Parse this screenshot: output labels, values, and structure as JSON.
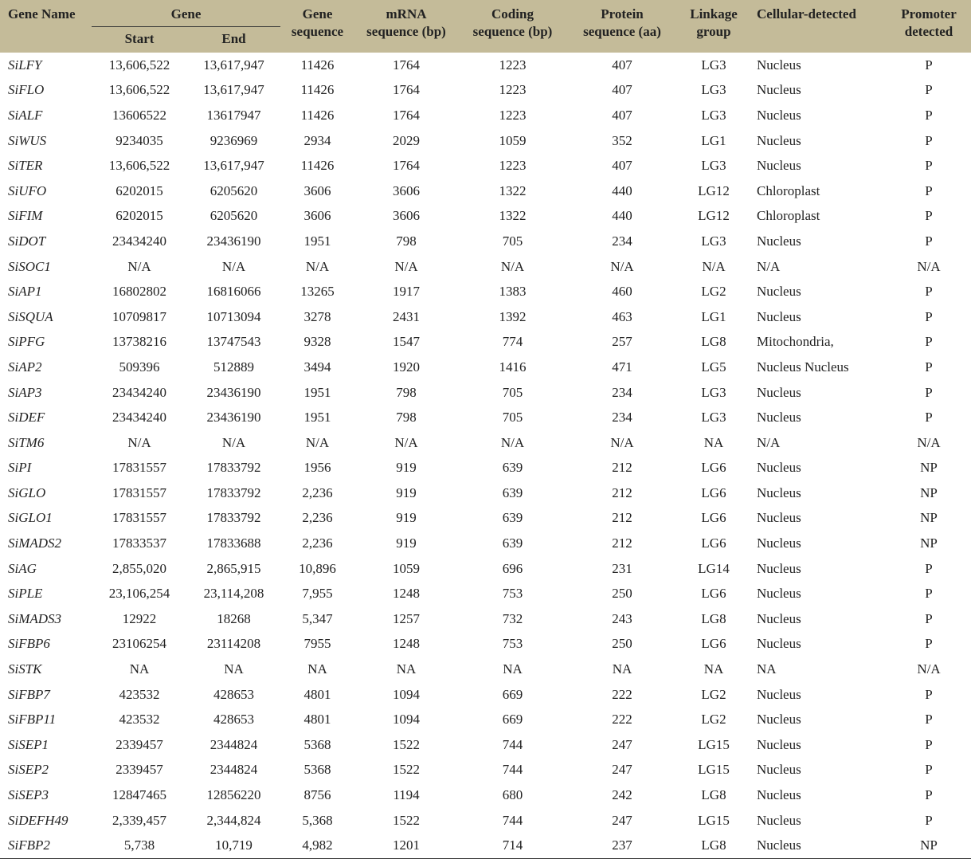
{
  "header": {
    "gene_name": "Gene Name",
    "gene": "Gene",
    "start": "Start",
    "end": "End",
    "gene_sequence": [
      "Gene",
      "sequence"
    ],
    "mrna": [
      "mRNA",
      "sequence (bp)"
    ],
    "coding": [
      "Coding",
      "sequence (bp)"
    ],
    "protein": [
      "Protein",
      "sequence (aa)"
    ],
    "linkage": [
      "Linkage",
      "group"
    ],
    "cellular": "Cellular-detected",
    "promoter": [
      "Promoter",
      "detected"
    ]
  },
  "colors": {
    "header_bg": "#c4bb99"
  },
  "rows": [
    [
      "SiLFY",
      "13,606,522",
      "13,617,947",
      "11426",
      "1764",
      "1223",
      "407",
      "LG3",
      "Nucleus",
      "P"
    ],
    [
      "SiFLO",
      "13,606,522",
      "13,617,947",
      "11426",
      "1764",
      "1223",
      "407",
      "LG3",
      "Nucleus",
      "P"
    ],
    [
      "SiALF",
      "13606522",
      "13617947",
      "11426",
      "1764",
      "1223",
      "407",
      "LG3",
      "Nucleus",
      "P"
    ],
    [
      "SiWUS",
      "9234035",
      "9236969",
      "2934",
      "2029",
      "1059",
      "352",
      "LG1",
      "Nucleus",
      "P"
    ],
    [
      "SiTER",
      "13,606,522",
      "13,617,947",
      "11426",
      "1764",
      "1223",
      "407",
      "LG3",
      "Nucleus",
      "P"
    ],
    [
      "SiUFO",
      "6202015",
      "6205620",
      "3606",
      "3606",
      "1322",
      "440",
      "LG12",
      "Chloroplast",
      "P"
    ],
    [
      "SiFIM",
      "6202015",
      "6205620",
      "3606",
      "3606",
      "1322",
      "440",
      "LG12",
      "Chloroplast",
      "P"
    ],
    [
      "SiDOT",
      "23434240",
      "23436190",
      "1951",
      "798",
      "705",
      "234",
      "LG3",
      "Nucleus",
      "P"
    ],
    [
      "SiSOC1",
      "N/A",
      "N/A",
      "N/A",
      "N/A",
      "N/A",
      "N/A",
      "N/A",
      "N/A",
      "N/A"
    ],
    [
      "SiAP1",
      "16802802",
      "16816066",
      "13265",
      "1917",
      "1383",
      "460",
      "LG2",
      "Nucleus",
      "P"
    ],
    [
      "SiSQUA",
      "10709817",
      "10713094",
      "3278",
      "2431",
      "1392",
      "463",
      "LG1",
      "Nucleus",
      "P"
    ],
    [
      "SiPFG",
      "13738216",
      "13747543",
      "9328",
      "1547",
      "774",
      "257",
      "LG8",
      "Mitochondria,",
      "P"
    ],
    [
      "SiAP2",
      "509396",
      "512889",
      "3494",
      "1920",
      "1416",
      "471",
      "LG5",
      "Nucleus Nucleus",
      "P"
    ],
    [
      "SiAP3",
      "23434240",
      "23436190",
      "1951",
      "798",
      "705",
      "234",
      "LG3",
      "Nucleus",
      "P"
    ],
    [
      "SiDEF",
      "23434240",
      "23436190",
      "1951",
      "798",
      "705",
      "234",
      "LG3",
      "Nucleus",
      "P"
    ],
    [
      "SiTM6",
      "N/A",
      "N/A",
      "N/A",
      "N/A",
      "N/A",
      "N/A",
      "NA",
      "N/A",
      "N/A"
    ],
    [
      "SiPI",
      "17831557",
      "17833792",
      "1956",
      "919",
      "639",
      "212",
      "LG6",
      "Nucleus",
      "NP"
    ],
    [
      "SiGLO",
      "17831557",
      "17833792",
      "2,236",
      "919",
      "639",
      "212",
      "LG6",
      "Nucleus",
      "NP"
    ],
    [
      "SiGLO1",
      "17831557",
      "17833792",
      "2,236",
      "919",
      "639",
      "212",
      "LG6",
      "Nucleus",
      "NP"
    ],
    [
      "SiMADS2",
      "17833537",
      "17833688",
      "2,236",
      "919",
      "639",
      "212",
      "LG6",
      "Nucleus",
      "NP"
    ],
    [
      "SiAG",
      "2,855,020",
      "2,865,915",
      "10,896",
      "1059",
      "696",
      "231",
      "LG14",
      "Nucleus",
      "P"
    ],
    [
      "SiPLE",
      "23,106,254",
      "23,114,208",
      "7,955",
      "1248",
      "753",
      "250",
      "LG6",
      "Nucleus",
      "P"
    ],
    [
      "SiMADS3",
      "12922",
      "18268",
      "5,347",
      "1257",
      "732",
      "243",
      "LG8",
      "Nucleus",
      "P"
    ],
    [
      "SiFBP6",
      "23106254",
      "23114208",
      "7955",
      "1248",
      "753",
      "250",
      "LG6",
      "Nucleus",
      "P"
    ],
    [
      "SiSTK",
      "NA",
      "NA",
      "NA",
      "NA",
      "NA",
      "NA",
      "NA",
      "NA",
      "N/A"
    ],
    [
      "SiFBP7",
      "423532",
      "428653",
      "4801",
      "1094",
      "669",
      "222",
      "LG2",
      "Nucleus",
      "P"
    ],
    [
      "SiFBP11",
      "423532",
      "428653",
      "4801",
      "1094",
      "669",
      "222",
      "LG2",
      "Nucleus",
      "P"
    ],
    [
      "SiSEP1",
      "2339457",
      "2344824",
      "5368",
      "1522",
      "744",
      "247",
      "LG15",
      "Nucleus",
      "P"
    ],
    [
      "SiSEP2",
      "2339457",
      "2344824",
      "5368",
      "1522",
      "744",
      "247",
      "LG15",
      "Nucleus",
      "P"
    ],
    [
      "SiSEP3",
      "12847465",
      "12856220",
      "8756",
      "1194",
      "680",
      "242",
      "LG8",
      "Nucleus",
      "P"
    ],
    [
      "SiDEFH49",
      "2,339,457",
      "2,344,824",
      "5,368",
      "1522",
      "744",
      "247",
      "LG15",
      "Nucleus",
      "P"
    ],
    [
      "SiFBP2",
      "5,738",
      "10,719",
      "4,982",
      "1201",
      "714",
      "237",
      "LG8",
      "Nucleus",
      "NP"
    ]
  ]
}
